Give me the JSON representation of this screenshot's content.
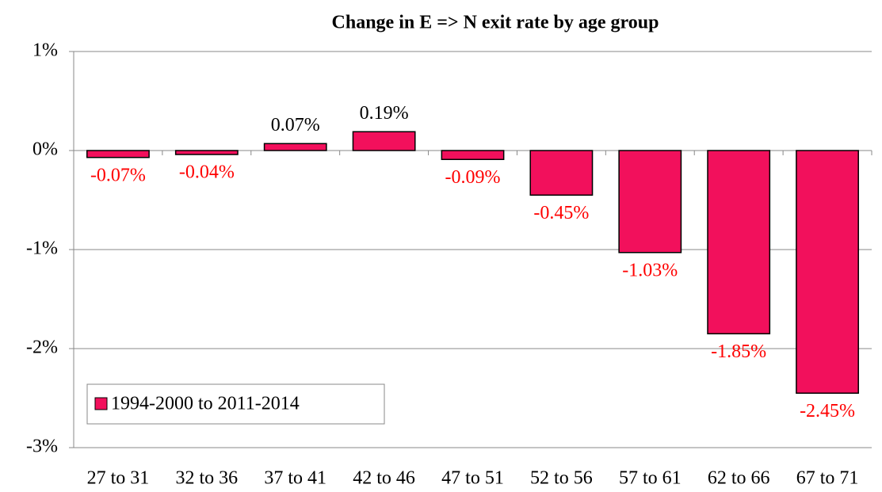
{
  "chart_data": {
    "type": "bar",
    "title": "Change in E => N exit rate by age group",
    "categories": [
      "27 to 31",
      "32 to 36",
      "37 to 41",
      "42 to 46",
      "47 to 51",
      "52 to 56",
      "57 to 61",
      "62 to 66",
      "67 to 71"
    ],
    "series": [
      {
        "name": "1994-2000 to 2011-2014",
        "color": "#f2105c",
        "values": [
          -0.07,
          -0.04,
          0.07,
          0.19,
          -0.09,
          -0.45,
          -1.03,
          -1.85,
          -2.45
        ],
        "value_labels": [
          "-0.07%",
          "-0.04%",
          "0.07%",
          "0.19%",
          "-0.09%",
          "-0.45%",
          "-1.03%",
          "-1.85%",
          "-2.45%"
        ]
      }
    ],
    "ylim": [
      -3,
      1
    ],
    "yticks": [
      {
        "value": -3,
        "label": "-3%"
      },
      {
        "value": -2,
        "label": "-2%"
      },
      {
        "value": -1,
        "label": "-1%"
      },
      {
        "value": 0,
        "label": "0%"
      },
      {
        "value": 1,
        "label": "1%"
      }
    ],
    "grid": true,
    "legend": "lower left",
    "label_color": "#000000",
    "negative_label_color": "#ff0000"
  }
}
